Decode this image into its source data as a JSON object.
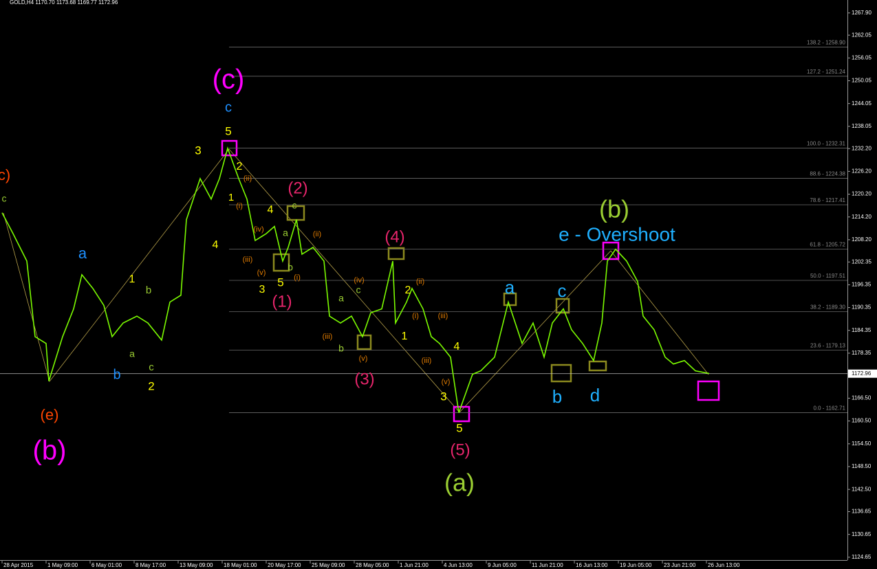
{
  "chart_data": {
    "type": "line",
    "title": "GOLD,H4  1170.70 1173.68 1169.77 1172.96",
    "background": "#000000",
    "series": [
      {
        "name": "GOLD,H4",
        "color": "#7cfc00",
        "x": [
          0,
          4,
          9,
          12,
          16,
          17,
          22,
          26,
          29,
          33,
          37,
          40,
          44,
          49,
          53,
          58,
          61,
          65,
          67,
          72,
          76,
          79,
          82,
          86,
          89,
          92,
          96,
          99,
          102,
          104,
          107,
          109,
          113,
          117,
          119,
          123,
          127,
          131,
          134,
          138,
          142,
          143,
          147,
          149,
          153,
          156,
          159,
          163,
          166,
          171,
          174,
          179,
          184,
          189,
          193,
          197,
          200,
          204,
          207,
          211,
          215,
          218,
          220,
          223,
          227,
          231,
          233,
          237,
          241,
          244,
          248,
          252,
          257
        ],
        "values": [
          1215.3,
          1209.8,
          1202.6,
          1182.7,
          1180.9,
          1171.0,
          1182.7,
          1190.0,
          1199.0,
          1195.4,
          1190.9,
          1182.7,
          1186.3,
          1188.1,
          1186.3,
          1181.8,
          1191.8,
          1193.6,
          1213.5,
          1224.3,
          1218.9,
          1224.3,
          1232.3,
          1224.3,
          1218.9,
          1208.0,
          1209.8,
          1211.7,
          1202.6,
          1206.2,
          1213.5,
          1204.4,
          1206.2,
          1202.6,
          1188.1,
          1186.3,
          1188.1,
          1182.7,
          1189.0,
          1190.0,
          1202.6,
          1186.3,
          1191.8,
          1195.4,
          1190.0,
          1182.7,
          1180.9,
          1177.3,
          1162.7,
          1172.8,
          1173.7,
          1177.3,
          1191.8,
          1180.9,
          1186.3,
          1177.3,
          1186.3,
          1190.0,
          1184.5,
          1180.9,
          1176.4,
          1186.3,
          1202.6,
          1205.7,
          1202.6,
          1197.2,
          1188.1,
          1184.5,
          1177.3,
          1175.5,
          1176.4,
          1173.7,
          1173.0
        ]
      }
    ],
    "xlim": [
      -0.75,
      307.25
    ],
    "xticks": [
      {
        "value": 0,
        "label": "28 Apr 2015"
      },
      {
        "value": 16,
        "label": "1 May 09:00"
      },
      {
        "value": 32,
        "label": "6 May 01:00"
      },
      {
        "value": 48,
        "label": "8 May 17:00"
      },
      {
        "value": 64,
        "label": "13 May 09:00"
      },
      {
        "value": 80,
        "label": "18 May 01:00"
      },
      {
        "value": 96,
        "label": "20 May 17:00"
      },
      {
        "value": 112,
        "label": "25 May 09:00"
      },
      {
        "value": 128,
        "label": "28 May 05:00"
      },
      {
        "value": 144,
        "label": "1 Jun 21:00"
      },
      {
        "value": 160,
        "label": "4 Jun 13:00"
      },
      {
        "value": 176,
        "label": "9 Jun 05:00"
      },
      {
        "value": 192,
        "label": "11 Jun 21:00"
      },
      {
        "value": 208,
        "label": "16 Jun 13:00"
      },
      {
        "value": 224,
        "label": "19 Jun 05:00"
      },
      {
        "value": 240,
        "label": "23 Jun 21:00"
      },
      {
        "value": 256,
        "label": "26 Jun 13:00"
      }
    ],
    "ylim": [
      1123.9,
      1271.3
    ],
    "yticks": [
      {
        "value": 1267.9,
        "label": "1267.90"
      },
      {
        "value": 1262.05,
        "label": "1262.05"
      },
      {
        "value": 1256.05,
        "label": "1256.05"
      },
      {
        "value": 1250.05,
        "label": "1250.05"
      },
      {
        "value": 1244.05,
        "label": "1244.05"
      },
      {
        "value": 1238.05,
        "label": "1238.05"
      },
      {
        "value": 1232.2,
        "label": "1232.20"
      },
      {
        "value": 1226.2,
        "label": "1226.20"
      },
      {
        "value": 1220.2,
        "label": "1220.20"
      },
      {
        "value": 1214.2,
        "label": "1214.20"
      },
      {
        "value": 1208.2,
        "label": "1208.20"
      },
      {
        "value": 1202.35,
        "label": "1202.35"
      },
      {
        "value": 1196.35,
        "label": "1196.35"
      },
      {
        "value": 1190.35,
        "label": "1190.35"
      },
      {
        "value": 1184.35,
        "label": "1184.35"
      },
      {
        "value": 1178.35,
        "label": "1178.35"
      },
      {
        "value": 1166.5,
        "label": "1166.50"
      },
      {
        "value": 1160.5,
        "label": "1160.50"
      },
      {
        "value": 1154.5,
        "label": "1154.50"
      },
      {
        "value": 1148.5,
        "label": "1148.50"
      },
      {
        "value": 1142.5,
        "label": "1142.50"
      },
      {
        "value": 1136.65,
        "label": "1136.65"
      },
      {
        "value": 1130.65,
        "label": "1130.65"
      },
      {
        "value": 1124.65,
        "label": "1124.65"
      }
    ],
    "current_price": {
      "value": 1172.96,
      "label": "1172.96"
    },
    "fib_levels": [
      {
        "value": 1258.9,
        "label": "138.2 - 1258.90"
      },
      {
        "value": 1251.24,
        "label": "127.2 - 1251.24"
      },
      {
        "value": 1232.31,
        "label": "100.0 - 1232.31"
      },
      {
        "value": 1224.38,
        "label": "88.6 - 1224.38"
      },
      {
        "value": 1217.41,
        "label": "78.6 - 1217.41"
      },
      {
        "value": 1205.72,
        "label": "61.8 - 1205.72"
      },
      {
        "value": 1197.51,
        "label": "50.0 - 1197.51"
      },
      {
        "value": 1189.3,
        "label": "38.2 - 1189.30"
      },
      {
        "value": 1179.13,
        "label": "23.6 - 1179.13"
      },
      {
        "value": 1162.71,
        "label": "0.0 - 1162.71"
      }
    ],
    "annotations": [
      {
        "text": "(c)",
        "color": "#ff00ff"
      },
      {
        "text": "(b)",
        "color": "#ff00ff"
      },
      {
        "text": "c",
        "color": "#1e90ff"
      },
      {
        "text": "5",
        "color": "#ffff00"
      },
      {
        "text": "(e)",
        "color": "#ff4500"
      },
      {
        "text": "c)",
        "color": "#ff4500"
      },
      {
        "text": "c",
        "color": "#9acd32"
      },
      {
        "text": "a",
        "color": "#1e90ff"
      },
      {
        "text": "1",
        "color": "#ffff00"
      },
      {
        "text": "b",
        "color": "#9acd32"
      },
      {
        "text": "a",
        "color": "#9acd32"
      },
      {
        "text": "c",
        "color": "#9acd32"
      },
      {
        "text": "b",
        "color": "#1e90ff"
      },
      {
        "text": "2",
        "color": "#ffff00"
      },
      {
        "text": "3",
        "color": "#ffff00"
      },
      {
        "text": "4",
        "color": "#ffff00"
      },
      {
        "text": "2",
        "color": "#ffff00"
      },
      {
        "text": "1",
        "color": "#ffff00"
      },
      {
        "text": "(ii)",
        "color": "#e07b00"
      },
      {
        "text": "(i)",
        "color": "#e07b00"
      },
      {
        "text": "4",
        "color": "#ffff00"
      },
      {
        "text": "(iv)",
        "color": "#e07b00"
      },
      {
        "text": "(iii)",
        "color": "#e07b00"
      },
      {
        "text": "(v)",
        "color": "#e07b00"
      },
      {
        "text": "3",
        "color": "#ffff00"
      },
      {
        "text": "5",
        "color": "#ffff00"
      },
      {
        "text": "a",
        "color": "#9acd32"
      },
      {
        "text": "b",
        "color": "#9acd32"
      },
      {
        "text": "(i)",
        "color": "#e07b00"
      },
      {
        "text": "(2)",
        "color": "#e6256b"
      },
      {
        "text": "c",
        "color": "#9acd32"
      },
      {
        "text": "(1)",
        "color": "#e6256b"
      },
      {
        "text": "(ii)",
        "color": "#e07b00"
      },
      {
        "text": "(iii)",
        "color": "#e07b00"
      },
      {
        "text": "a",
        "color": "#9acd32"
      },
      {
        "text": "b",
        "color": "#9acd32"
      },
      {
        "text": "c",
        "color": "#9acd32"
      },
      {
        "text": "(iv)",
        "color": "#e07b00"
      },
      {
        "text": "(v)",
        "color": "#e07b00"
      },
      {
        "text": "(3)",
        "color": "#e6256b"
      },
      {
        "text": "(4)",
        "color": "#e6256b"
      },
      {
        "text": "2",
        "color": "#ffff00"
      },
      {
        "text": "(ii)",
        "color": "#e07b00"
      },
      {
        "text": "(i)",
        "color": "#e07b00"
      },
      {
        "text": "(iii)",
        "color": "#e07b00"
      },
      {
        "text": "1",
        "color": "#ffff00"
      },
      {
        "text": "(iii)",
        "color": "#e07b00"
      },
      {
        "text": "(v)",
        "color": "#e07b00"
      },
      {
        "text": "4",
        "color": "#ffff00"
      },
      {
        "text": "3",
        "color": "#ffff00"
      },
      {
        "text": "5",
        "color": "#ffff00"
      },
      {
        "text": "(5)",
        "color": "#e6256b"
      },
      {
        "text": "(a)",
        "color": "#9acd32"
      },
      {
        "text": "a",
        "color": "#1fb0ff"
      },
      {
        "text": "c",
        "color": "#1fb0ff"
      },
      {
        "text": "b",
        "color": "#1fb0ff"
      },
      {
        "text": "d",
        "color": "#1fb0ff"
      },
      {
        "text": "(b)",
        "color": "#9acd32"
      },
      {
        "text": "e - Overshoot",
        "color": "#1fb0ff"
      }
    ]
  }
}
